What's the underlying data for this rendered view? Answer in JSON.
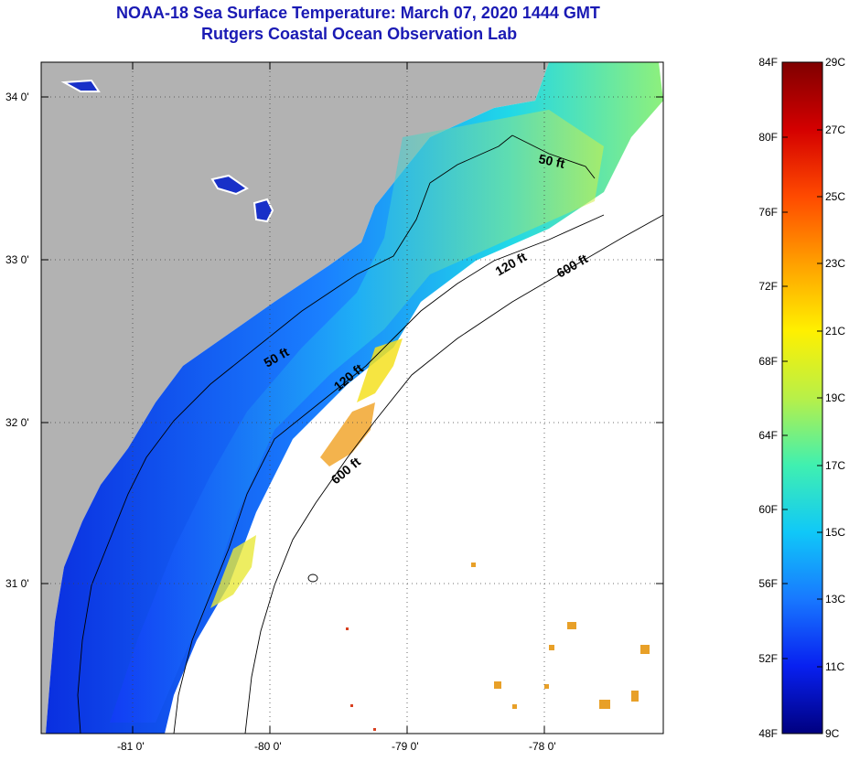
{
  "title": "NOAA-18 Sea Surface Temperature:  March 07, 2020 1444 GMT",
  "subtitle": "Rutgers Coastal Ocean Observation Lab",
  "map": {
    "lat_labels": [
      "34 0'",
      "33 0'",
      "32 0'",
      "31 0'"
    ],
    "lon_labels": [
      "-81 0'",
      "-80 0'",
      "-79 0'",
      "-78 0'"
    ],
    "isobath_labels": [
      "50 ft",
      "50 ft",
      "120 ft",
      "120 ft",
      "600 ft",
      "600 ft"
    ],
    "colors": {
      "land": "#b2b2b2",
      "ocean_nodata": "#ffffff",
      "isobath": "#000000"
    }
  },
  "colorbar": {
    "fahrenheit_labels": [
      "84F",
      "80F",
      "76F",
      "72F",
      "68F",
      "64F",
      "60F",
      "56F",
      "52F",
      "48F"
    ],
    "celsius_labels": [
      "29C",
      "27C",
      "25C",
      "23C",
      "21C",
      "19C",
      "17C",
      "15C",
      "13C",
      "11C",
      "9C"
    ],
    "gradient_colors": [
      "#7f0000",
      "#d40000",
      "#ff4000",
      "#ff9a00",
      "#ffe000",
      "#c8f03c",
      "#5cf0a0",
      "#10d8f0",
      "#1a8cff",
      "#1438ff",
      "#0000c8",
      "#00007f"
    ]
  }
}
